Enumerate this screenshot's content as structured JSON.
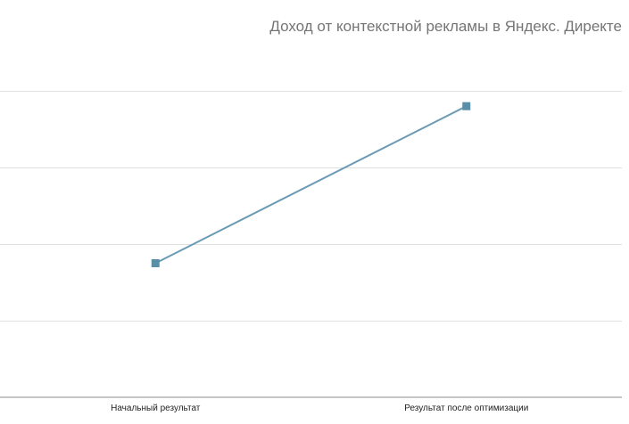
{
  "chart_data": {
    "type": "line",
    "title": "Доход от контекстной рекламы в Яндекс. Директе",
    "categories": [
      "Начальный результат",
      "Результат после оптимизации"
    ],
    "series": [
      {
        "values": [
          35,
          76
        ],
        "color": "#6a9bb4",
        "marker_color": "#5b8fa6",
        "marker": "square"
      }
    ],
    "ylim": [
      0,
      90
    ],
    "y_gridlines": [
      20,
      40,
      60,
      80
    ],
    "grid": true,
    "legend": "none",
    "xlabel": "",
    "ylabel": ""
  }
}
